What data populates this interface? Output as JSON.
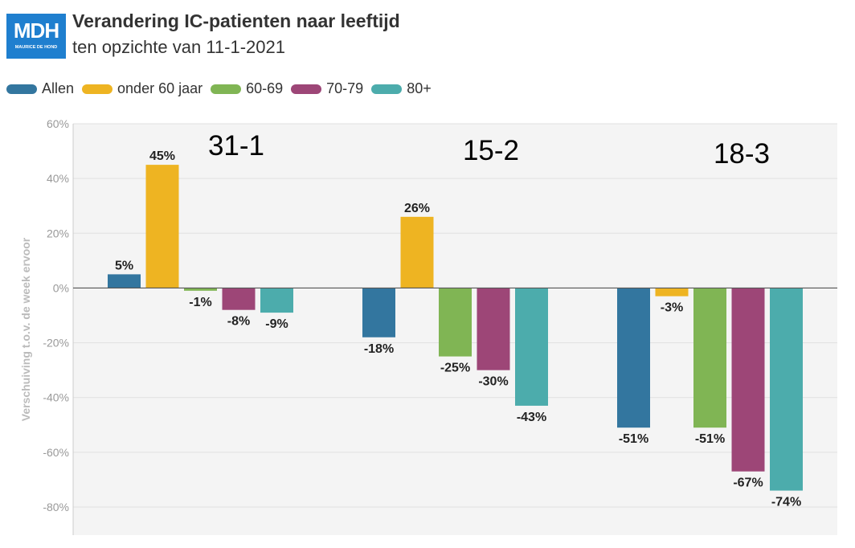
{
  "header": {
    "logo_text": "MDH",
    "logo_subtext": "MAURICE DE HOND",
    "title": "Verandering IC-patienten naar leeftijd",
    "subtitle": "ten opzichte van 11-1-2021"
  },
  "colors": {
    "Allen": "#33769f",
    "onder 60 jaar": "#eeb422",
    "60-69": "#80b554",
    "70-79": "#9d4677",
    "80+": "#4cacac",
    "logo": "#1f7fcf"
  },
  "chart_data": {
    "type": "bar",
    "title": "Verandering IC-patienten naar leeftijd",
    "subtitle": "ten opzichte van 11-1-2021",
    "xlabel": "",
    "ylabel": "Verschuiving t.o.v. de week ervoor",
    "ylim": [
      -80,
      60
    ],
    "ytick_values": [
      60,
      40,
      20,
      0,
      -20,
      -40,
      -60,
      -80
    ],
    "ytick_labels": [
      "60%",
      "40%",
      "20%",
      "0%",
      "-20%",
      "-40%",
      "-60%",
      "-80%"
    ],
    "grid": true,
    "legend_position": "top-left",
    "categories": [
      "31-1",
      "15-2",
      "18-3"
    ],
    "series": [
      {
        "name": "Allen",
        "values": [
          5,
          -18,
          -51
        ],
        "labels": [
          "5%",
          "-18%",
          "-51%"
        ]
      },
      {
        "name": "onder 60 jaar",
        "values": [
          45,
          26,
          -3
        ],
        "labels": [
          "45%",
          "26%",
          "-3%"
        ]
      },
      {
        "name": "60-69",
        "values": [
          -1,
          -25,
          -51
        ],
        "labels": [
          "-1%",
          "-25%",
          "-51%"
        ]
      },
      {
        "name": "70-79",
        "values": [
          -8,
          -30,
          -67
        ],
        "labels": [
          "-8%",
          "-30%",
          "-67%"
        ]
      },
      {
        "name": "80+",
        "values": [
          -9,
          -43,
          -74
        ],
        "labels": [
          "-9%",
          "-43%",
          "-74%"
        ]
      }
    ]
  }
}
